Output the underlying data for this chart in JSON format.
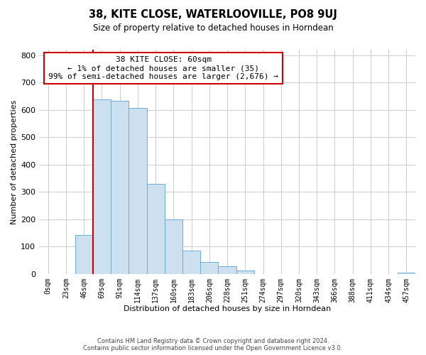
{
  "title": "38, KITE CLOSE, WATERLOOVILLE, PO8 9UJ",
  "subtitle": "Size of property relative to detached houses in Horndean",
  "xlabel": "Distribution of detached houses by size in Horndean",
  "ylabel": "Number of detached properties",
  "bar_labels": [
    "0sqm",
    "23sqm",
    "46sqm",
    "69sqm",
    "91sqm",
    "114sqm",
    "137sqm",
    "160sqm",
    "183sqm",
    "206sqm",
    "228sqm",
    "251sqm",
    "274sqm",
    "297sqm",
    "320sqm",
    "343sqm",
    "366sqm",
    "388sqm",
    "411sqm",
    "434sqm",
    "457sqm"
  ],
  "bar_values": [
    0,
    0,
    143,
    637,
    634,
    608,
    330,
    200,
    85,
    43,
    27,
    12,
    0,
    0,
    0,
    0,
    0,
    0,
    0,
    0,
    5
  ],
  "bar_color": "#cde0f0",
  "bar_edge_color": "#6aaed6",
  "ylim": [
    0,
    820
  ],
  "yticks": [
    0,
    100,
    200,
    300,
    400,
    500,
    600,
    700,
    800
  ],
  "vline_color": "#cc0000",
  "annotation_title": "38 KITE CLOSE: 60sqm",
  "annotation_line1": "← 1% of detached houses are smaller (35)",
  "annotation_line2": "99% of semi-detached houses are larger (2,676) →",
  "annotation_box_color": "#ffffff",
  "annotation_box_edge": "#cc0000",
  "footer1": "Contains HM Land Registry data © Crown copyright and database right 2024.",
  "footer2": "Contains public sector information licensed under the Open Government Licence v3.0.",
  "background_color": "#ffffff",
  "grid_color": "#cccccc",
  "vline_xindex": 3
}
